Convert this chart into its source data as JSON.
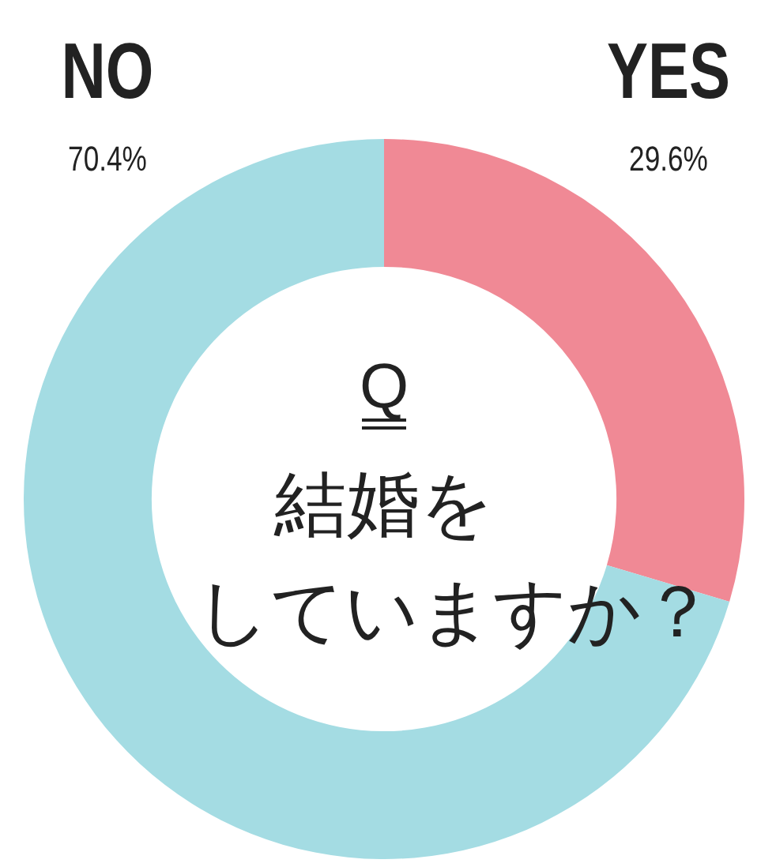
{
  "chart_data": {
    "type": "donut",
    "title": "Q",
    "annotations": [
      "結婚を",
      "していますか？"
    ],
    "categories": [
      "YES",
      "NO"
    ],
    "values": [
      29.6,
      70.4
    ],
    "colors": [
      "#f08995",
      "#a4dce3"
    ],
    "value_labels": [
      "29.6%",
      "70.4%"
    ]
  }
}
